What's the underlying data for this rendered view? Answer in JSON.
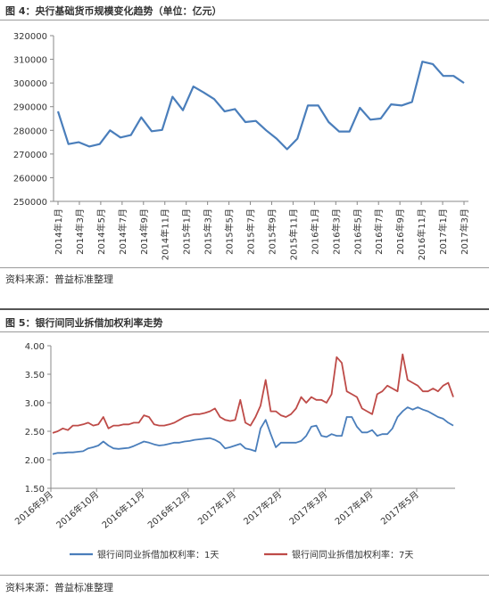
{
  "figure1": {
    "title": "图 4：央行基础货币规模变化趋势（单位：亿元）",
    "source": "资料来源：普益标准整理"
  },
  "figure2": {
    "title": "图 5：银行间同业拆借加权利率走势",
    "source": "资料来源：普益标准整理"
  },
  "colors": {
    "series1": "#4a7ebb",
    "series2": "#be4b48",
    "axis": "#888888"
  },
  "chart_data": [
    {
      "type": "line",
      "title": "央行基础货币规模变化趋势（单位：亿元）",
      "xlabel": "",
      "ylabel": "",
      "ylim": [
        250000,
        320000
      ],
      "yticks": [
        250000,
        260000,
        270000,
        280000,
        290000,
        300000,
        310000,
        320000
      ],
      "x_tick_labels": [
        "2014年1月",
        "2014年3月",
        "2014年5月",
        "2014年7月",
        "2014年9月",
        "2014年11月",
        "2015年1月",
        "2015年3月",
        "2015年5月",
        "2015年7月",
        "2015年9月",
        "2015年11月",
        "2016年1月",
        "2016年3月",
        "2016年5月",
        "2016年7月",
        "2016年9月",
        "2016年11月",
        "2017年1月",
        "2017年3月"
      ],
      "grid": false,
      "series": [
        {
          "values": [
            288000,
            274200,
            275000,
            273200,
            274200,
            280000,
            277000,
            278000,
            285500,
            279600,
            280200,
            294200,
            288500,
            298500,
            296000,
            293200,
            288000,
            289000,
            283500,
            284000,
            280000,
            276500,
            272000,
            276500,
            290500,
            290500,
            283500,
            279500,
            279500,
            289500,
            284500,
            285000,
            291000,
            290500,
            292000,
            309000,
            308000,
            303000,
            303000,
            300000
          ],
          "x_positions": [
            0,
            1,
            2,
            3,
            4,
            5,
            6,
            7,
            8,
            9,
            10,
            11,
            12,
            13,
            14,
            15,
            16,
            17,
            18,
            19,
            20,
            21,
            22,
            23,
            24,
            25,
            26,
            27,
            28,
            29,
            30,
            31,
            32,
            33,
            34,
            35,
            36,
            37,
            38,
            39
          ]
        }
      ]
    },
    {
      "type": "line",
      "title": "银行间同业拆借加权利率走势",
      "xlabel": "",
      "ylabel": "",
      "ylim": [
        1.5,
        4.0
      ],
      "yticks": [
        1.5,
        2.0,
        2.5,
        3.0,
        3.5,
        4.0
      ],
      "ytick_labels": [
        "1.50",
        "2.00",
        "2.50",
        "3.00",
        "3.50",
        "4.00"
      ],
      "x_tick_labels": [
        "2016年9月",
        "2016年10月",
        "2016年11月",
        "2016年12月",
        "2017年1月",
        "2017年2月",
        "2017年3月",
        "2017年4月",
        "2017年5月"
      ],
      "grid": false,
      "legend_position": "bottom",
      "series": [
        {
          "name": "银行间同业拆借加权利率：1天",
          "values": [
            2.1,
            2.12,
            2.12,
            2.13,
            2.13,
            2.14,
            2.15,
            2.2,
            2.22,
            2.25,
            2.32,
            2.25,
            2.2,
            2.19,
            2.2,
            2.21,
            2.24,
            2.28,
            2.32,
            2.3,
            2.27,
            2.25,
            2.26,
            2.28,
            2.3,
            2.3,
            2.32,
            2.33,
            2.35,
            2.36,
            2.37,
            2.38,
            2.35,
            2.3,
            2.2,
            2.22,
            2.25,
            2.28,
            2.2,
            2.18,
            2.15,
            2.55,
            2.7,
            2.45,
            2.22,
            2.3,
            2.3,
            2.3,
            2.3,
            2.33,
            2.42,
            2.58,
            2.6,
            2.42,
            2.4,
            2.45,
            2.42,
            2.42,
            2.75,
            2.75,
            2.58,
            2.48,
            2.48,
            2.52,
            2.42,
            2.45,
            2.45,
            2.55,
            2.75,
            2.85,
            2.92,
            2.88,
            2.92,
            2.88,
            2.85,
            2.8,
            2.75,
            2.72,
            2.65,
            2.6
          ]
        },
        {
          "name": "银行间同业拆借加权利率：7天",
          "values": [
            2.47,
            2.5,
            2.55,
            2.52,
            2.6,
            2.6,
            2.62,
            2.65,
            2.6,
            2.62,
            2.75,
            2.55,
            2.6,
            2.6,
            2.62,
            2.62,
            2.65,
            2.65,
            2.78,
            2.75,
            2.62,
            2.6,
            2.6,
            2.62,
            2.65,
            2.7,
            2.75,
            2.78,
            2.8,
            2.8,
            2.82,
            2.85,
            2.9,
            2.75,
            2.7,
            2.68,
            2.7,
            3.05,
            2.65,
            2.6,
            2.75,
            2.95,
            3.4,
            2.85,
            2.85,
            2.78,
            2.75,
            2.8,
            2.9,
            3.1,
            3.0,
            3.1,
            3.05,
            3.05,
            3.0,
            3.15,
            3.8,
            3.7,
            3.2,
            3.15,
            3.1,
            2.9,
            2.85,
            2.8,
            3.15,
            3.2,
            3.3,
            3.25,
            3.2,
            3.85,
            3.4,
            3.35,
            3.3,
            3.2,
            3.2,
            3.25,
            3.2,
            3.3,
            3.35,
            3.1
          ]
        }
      ]
    }
  ]
}
